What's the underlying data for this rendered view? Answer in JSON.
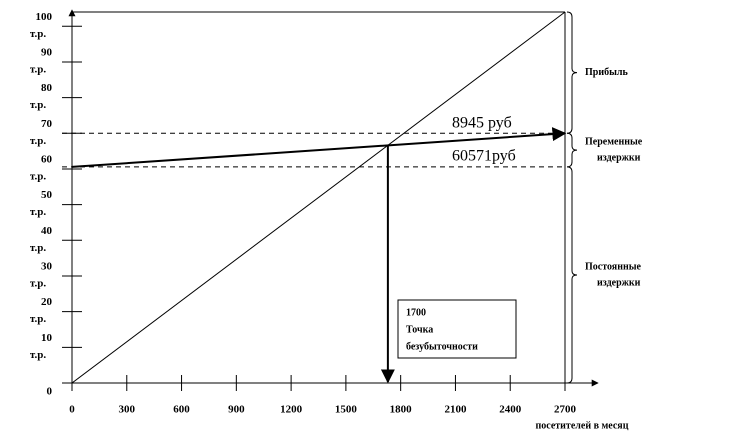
{
  "chart_data": {
    "type": "line",
    "x_label": "посетителей в месяц",
    "y_unit": "т.р.",
    "xlim": [
      0,
      2700
    ],
    "ylim": [
      0,
      104
    ],
    "xticks": [
      0,
      300,
      600,
      900,
      1200,
      1500,
      1800,
      2100,
      2400,
      2700
    ],
    "yticks": [
      0,
      10,
      20,
      30,
      40,
      50,
      60,
      70,
      80,
      90,
      100
    ],
    "x": [
      0,
      2700
    ],
    "series": [
      {
        "color": "#000000",
        "width": 1,
        "values": [
          0,
          104
        ]
      },
      {
        "color": "#000000",
        "width": 2,
        "values": [
          60.571,
          70
        ]
      }
    ],
    "hlines": [
      70,
      60.571
    ],
    "break_even": {
      "x": 1730,
      "y": 66.6,
      "label": [
        "1700",
        "Точка",
        "безубыточности"
      ]
    },
    "annotations": [
      "8945 руб",
      "60571руб"
    ],
    "brace_labels": [
      [
        "Прибыль"
      ],
      [
        "Переменные",
        "издержки"
      ],
      [
        "Постоянные",
        "издержки"
      ]
    ]
  }
}
